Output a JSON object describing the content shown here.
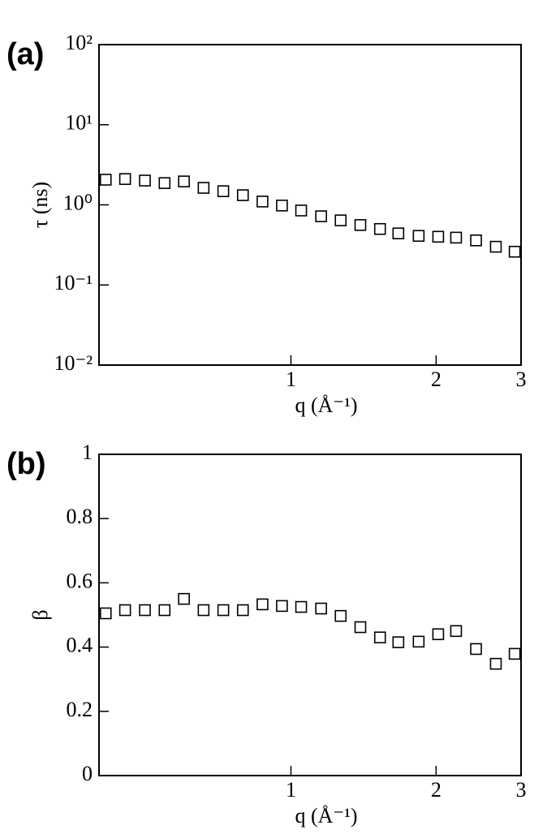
{
  "chart_data": [
    {
      "type": "scatter",
      "panel_label": "(a)",
      "xlabel": "q (Å⁻¹)",
      "ylabel": "τ (ns)",
      "xscale": "log",
      "yscale": "log",
      "marker": "open-square",
      "color": "#000000",
      "xlim": [
        0.4,
        3
      ],
      "xticks": [
        1,
        2,
        3
      ],
      "ylim": [
        0.01,
        100
      ],
      "yticks": [
        {
          "value": 0.01,
          "label": "10⁻²"
        },
        {
          "value": 0.1,
          "label": "10⁻¹"
        },
        {
          "value": 1,
          "label": "10⁰"
        },
        {
          "value": 10,
          "label": "10¹"
        },
        {
          "value": 100,
          "label": "10²"
        }
      ],
      "x": [
        0.413,
        0.453,
        0.498,
        0.547,
        0.6,
        0.659,
        0.724,
        0.795,
        0.873,
        0.958,
        1.05,
        1.155,
        1.268,
        1.393,
        1.53,
        1.67,
        1.84,
        2.02,
        2.2,
        2.42,
        2.66,
        2.91
      ],
      "values": [
        2.06,
        2.1,
        2.01,
        1.87,
        1.96,
        1.63,
        1.48,
        1.32,
        1.1,
        0.98,
        0.85,
        0.72,
        0.64,
        0.56,
        0.5,
        0.44,
        0.41,
        0.4,
        0.39,
        0.36,
        0.3,
        0.26
      ]
    },
    {
      "type": "scatter",
      "panel_label": "(b)",
      "xlabel": "q (Å⁻¹)",
      "ylabel": "β",
      "xscale": "log",
      "yscale": "linear",
      "marker": "open-square",
      "color": "#000000",
      "xlim": [
        0.4,
        3
      ],
      "xticks": [
        1,
        2,
        3
      ],
      "ylim": [
        0,
        1
      ],
      "yticks": [
        0,
        0.2,
        0.4,
        0.6,
        0.8,
        1
      ],
      "x": [
        0.413,
        0.453,
        0.498,
        0.547,
        0.6,
        0.659,
        0.724,
        0.795,
        0.873,
        0.958,
        1.05,
        1.155,
        1.268,
        1.393,
        1.53,
        1.67,
        1.84,
        2.02,
        2.2,
        2.42,
        2.66,
        2.91
      ],
      "values": [
        0.505,
        0.515,
        0.515,
        0.515,
        0.55,
        0.515,
        0.515,
        0.515,
        0.533,
        0.528,
        0.525,
        0.52,
        0.497,
        0.462,
        0.43,
        0.415,
        0.417,
        0.44,
        0.45,
        0.394,
        0.348,
        0.379
      ]
    }
  ]
}
